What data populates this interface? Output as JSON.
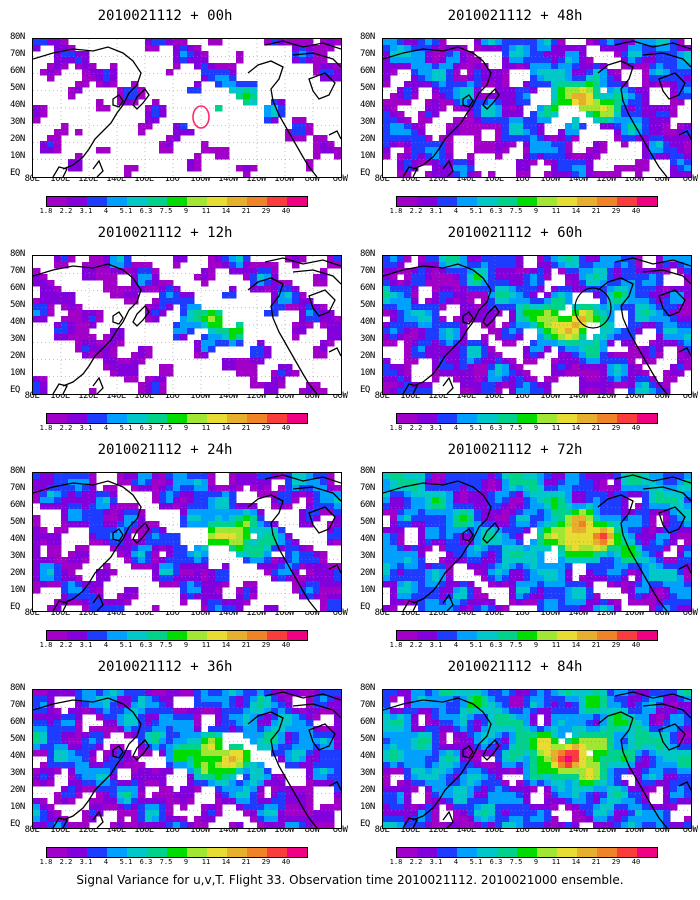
{
  "panels": [
    {
      "title": "2010021112 + 00h",
      "fill": 0.18,
      "peak": 0.55
    },
    {
      "title": "2010021112 + 12h",
      "fill": 0.32,
      "peak": 0.65
    },
    {
      "title": "2010021112 + 24h",
      "fill": 0.55,
      "peak": 0.7
    },
    {
      "title": "2010021112 + 36h",
      "fill": 0.7,
      "peak": 0.72
    },
    {
      "title": "2010021112 + 48h",
      "fill": 0.62,
      "peak": 0.72
    },
    {
      "title": "2010021112 + 60h",
      "fill": 0.7,
      "peak": 0.75
    },
    {
      "title": "2010021112 + 72h",
      "fill": 0.85,
      "peak": 0.8
    },
    {
      "title": "2010021112 + 84h",
      "fill": 0.92,
      "peak": 0.85
    }
  ],
  "lat_labels": [
    "80N",
    "70N",
    "60N",
    "50N",
    "40N",
    "30N",
    "20N",
    "10N",
    "EQ"
  ],
  "lon_labels": [
    "80E",
    "100E",
    "120E",
    "140E",
    "160E",
    "180",
    "160W",
    "140W",
    "120W",
    "100W",
    "80W",
    "60W"
  ],
  "colorbar": {
    "labels": [
      "1.8",
      "2.2",
      "3.1",
      "4",
      "5.1",
      "6.3",
      "7.5",
      "9",
      "11",
      "14",
      "21",
      "29",
      "40"
    ],
    "colors": [
      "#a000c8",
      "#8200dc",
      "#1e3cff",
      "#00a0ff",
      "#00c8c8",
      "#00d28c",
      "#00dc00",
      "#a0e632",
      "#e6dc32",
      "#e6af2d",
      "#f08228",
      "#fa3c3c",
      "#f00082"
    ]
  },
  "caption": "Signal Variance for u,v,T. Flight 33. Observation time 2010021112. 2010021000 ensemble."
}
